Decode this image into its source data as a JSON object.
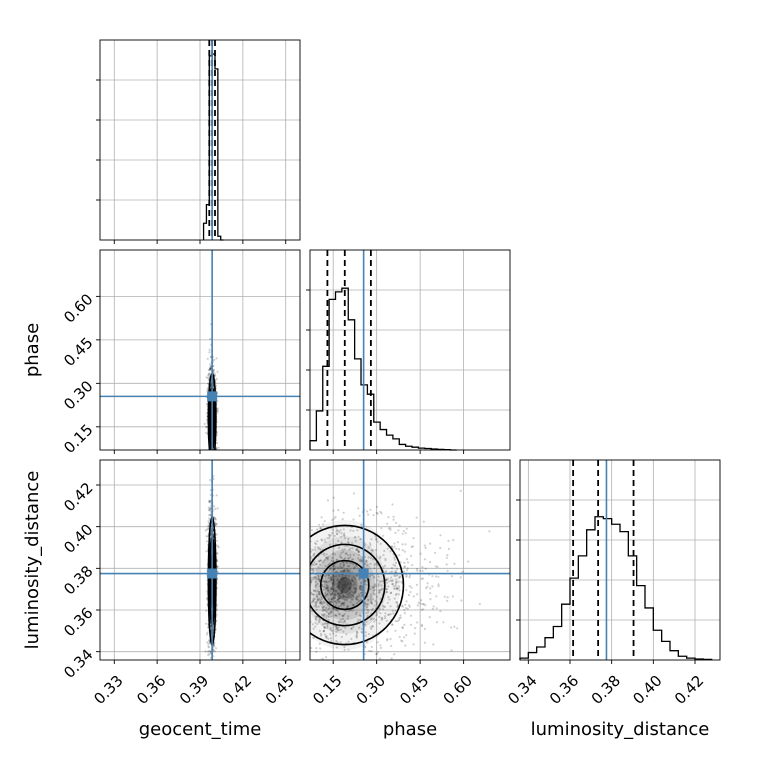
{
  "chart_data": {
    "type": "corner",
    "params": [
      {
        "name": "geocent_time",
        "label": "geocent_time",
        "range": [
          0.32,
          0.46
        ],
        "ticks": [
          "0.33",
          "0.36",
          "0.39",
          "0.42",
          "0.45"
        ],
        "tick_values": [
          0.33,
          0.36,
          0.39,
          0.42,
          0.45
        ],
        "truth": 0.3985,
        "quantiles": [
          0.3965,
          0.3985,
          0.4005
        ]
      },
      {
        "name": "phase",
        "label": "phase",
        "range": [
          0.07,
          0.76
        ],
        "ticks": [
          "0.15",
          "0.30",
          "0.45",
          "0.60"
        ],
        "tick_values": [
          0.15,
          0.3,
          0.45,
          0.6
        ],
        "truth": 0.255,
        "quantiles": [
          0.13,
          0.19,
          0.28
        ]
      },
      {
        "name": "luminosity_distance",
        "label": "luminosity_distance",
        "range": [
          0.336,
          0.432
        ],
        "ticks": [
          "0.34",
          "0.36",
          "0.38",
          "0.40",
          "0.42"
        ],
        "tick_values": [
          0.34,
          0.36,
          0.38,
          0.4,
          0.42
        ],
        "truth": 0.3775,
        "quantiles": [
          0.3615,
          0.3735,
          0.3905
        ]
      }
    ],
    "histograms": [
      {
        "param": "geocent_time",
        "bin_edges": [
          0.3925,
          0.3945,
          0.3965,
          0.3985,
          0.4005,
          0.4025,
          0.4045,
          0.4065
        ],
        "counts": [
          0.09,
          0.19,
          0.99,
          1.0,
          0.92,
          0.02,
          0.0
        ]
      },
      {
        "param": "phase",
        "bin_edges": [
          0.07,
          0.092,
          0.114,
          0.136,
          0.158,
          0.18,
          0.202,
          0.224,
          0.246,
          0.268,
          0.29,
          0.312,
          0.334,
          0.356,
          0.378,
          0.4,
          0.422,
          0.444,
          0.466,
          0.488,
          0.51,
          0.532,
          0.554,
          0.576
        ],
        "counts": [
          0.05,
          0.21,
          0.45,
          0.81,
          0.85,
          0.87,
          0.7,
          0.49,
          0.35,
          0.3,
          0.15,
          0.11,
          0.08,
          0.06,
          0.03,
          0.02,
          0.015,
          0.01,
          0.008,
          0.005,
          0.003,
          0.002,
          0.0
        ]
      },
      {
        "param": "luminosity_distance",
        "bin_edges": [
          0.336,
          0.34,
          0.344,
          0.348,
          0.352,
          0.356,
          0.36,
          0.364,
          0.368,
          0.372,
          0.376,
          0.38,
          0.384,
          0.388,
          0.392,
          0.396,
          0.4,
          0.404,
          0.408,
          0.412,
          0.416,
          0.42,
          0.424,
          0.428
        ],
        "counts": [
          0.01,
          0.04,
          0.07,
          0.12,
          0.18,
          0.3,
          0.44,
          0.56,
          0.7,
          0.77,
          0.76,
          0.73,
          0.69,
          0.56,
          0.4,
          0.28,
          0.16,
          0.1,
          0.05,
          0.02,
          0.01,
          0.005,
          0.003
        ]
      }
    ],
    "pairs": [
      {
        "x": "geocent_time",
        "y": "phase",
        "center": [
          0.3985,
          0.18
        ],
        "sx": 0.0012,
        "sy": 0.07
      },
      {
        "x": "geocent_time",
        "y": "luminosity_distance",
        "center": [
          0.3985,
          0.374
        ],
        "sx": 0.0012,
        "sy": 0.014
      },
      {
        "x": "phase",
        "y": "luminosity_distance",
        "center": [
          0.19,
          0.372
        ],
        "sx": 0.08,
        "sy": 0.013
      }
    ],
    "truth_color": "#4682b4",
    "grid": true
  }
}
